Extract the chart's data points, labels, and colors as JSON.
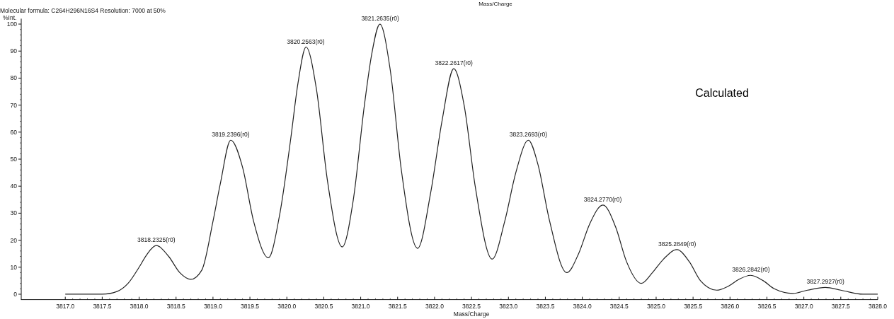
{
  "chart_data": {
    "type": "line",
    "title": "Molecular formula: C264H296N16S4  Resolution: 7000 at 50%",
    "xlabel": "Mass/Charge",
    "ylabel": "%Int.",
    "x": [
      3817.0,
      3817.5,
      3817.7,
      3817.85,
      3818.0,
      3818.1,
      3818.23,
      3818.4,
      3818.55,
      3818.7,
      3818.85,
      3819.0,
      3819.1,
      3819.24,
      3819.4,
      3819.55,
      3819.75,
      3819.9,
      3820.05,
      3820.15,
      3820.26,
      3820.4,
      3820.55,
      3820.75,
      3820.9,
      3821.05,
      3821.15,
      3821.26,
      3821.4,
      3821.55,
      3821.77,
      3821.95,
      3822.1,
      3822.26,
      3822.4,
      3822.55,
      3822.78,
      3822.95,
      3823.1,
      3823.27,
      3823.4,
      3823.55,
      3823.79,
      3823.95,
      3824.1,
      3824.28,
      3824.45,
      3824.6,
      3824.8,
      3824.95,
      3825.1,
      3825.28,
      3825.45,
      3825.6,
      3825.82,
      3825.98,
      3826.12,
      3826.28,
      3826.45,
      3826.6,
      3826.85,
      3827.05,
      3827.29,
      3827.5,
      3827.8,
      3828.0
    ],
    "series": [
      {
        "color": "#222222",
        "values": [
          0,
          0,
          1,
          4,
          10,
          14.5,
          18,
          14,
          8,
          5.5,
          9,
          27,
          41,
          57,
          47,
          27,
          13.5,
          29,
          57,
          78,
          91.5,
          76,
          42,
          17.5,
          35,
          70,
          89,
          100,
          83,
          46,
          17,
          38,
          64,
          83.5,
          70,
          40,
          13,
          27,
          45,
          57,
          48,
          28,
          8,
          15,
          26,
          33,
          25,
          12,
          4,
          8,
          13,
          16.5,
          12,
          5,
          1.5,
          3,
          5.5,
          7,
          5,
          2,
          0.3,
          1.5,
          2.5,
          1.5,
          0,
          0
        ]
      }
    ],
    "xlim": [
      3816.4,
      3828.0
    ],
    "ylim": [
      -2,
      102
    ],
    "xticks": [
      {
        "value": 3817,
        "label": "3817.0"
      },
      3817.5,
      {
        "value": 3818,
        "label": "3818.0"
      },
      3818.5,
      {
        "value": 3819,
        "label": "3819.0"
      },
      3819.5,
      {
        "value": 3820,
        "label": "3820.0"
      },
      3820.5,
      {
        "value": 3821,
        "label": "3821.0"
      },
      3821.5,
      {
        "value": 3822,
        "label": "3822.0"
      },
      3822.5,
      {
        "value": 3823,
        "label": "3823.0"
      },
      3823.5,
      {
        "value": 3824,
        "label": "3824.0"
      },
      3824.5,
      {
        "value": 3825,
        "label": "3825.0"
      },
      3825.5,
      {
        "value": 3826,
        "label": "3826.0"
      },
      3826.5,
      {
        "value": 3827,
        "label": "3827.0"
      },
      3827.5,
      {
        "value": 3828,
        "label": "3828.0"
      }
    ],
    "yticks": [
      0,
      10,
      20,
      30,
      40,
      50,
      60,
      70,
      80,
      90,
      100
    ],
    "marker": "none",
    "line_style": "solid",
    "annotations": [
      "Mass/Charge",
      "Calculated",
      {
        "text": "3818.2325(r0)",
        "x": 3818.2325,
        "y": 18
      },
      {
        "text": "3819.2396(r0)",
        "x": 3819.2396,
        "y": 57
      },
      {
        "text": "3820.2563(r0)",
        "x": 3820.2563,
        "y": 91.5
      },
      {
        "text": "3821.2635(r0)",
        "x": 3821.2635,
        "y": 100
      },
      {
        "text": "3822.2617(r0)",
        "x": 3822.2617,
        "y": 83.5
      },
      {
        "text": "3823.2693(r0)",
        "x": 3823.2693,
        "y": 57
      },
      {
        "text": "3824.2770(r0)",
        "x": 3824.277,
        "y": 33
      },
      {
        "text": "3825.2849(r0)",
        "x": 3825.2849,
        "y": 16.5
      },
      {
        "text": "3826.2842(r0)",
        "x": 3826.2842,
        "y": 7
      },
      {
        "text": "3827.2927(r0)",
        "x": 3827.2927,
        "y": 2.5
      }
    ]
  }
}
